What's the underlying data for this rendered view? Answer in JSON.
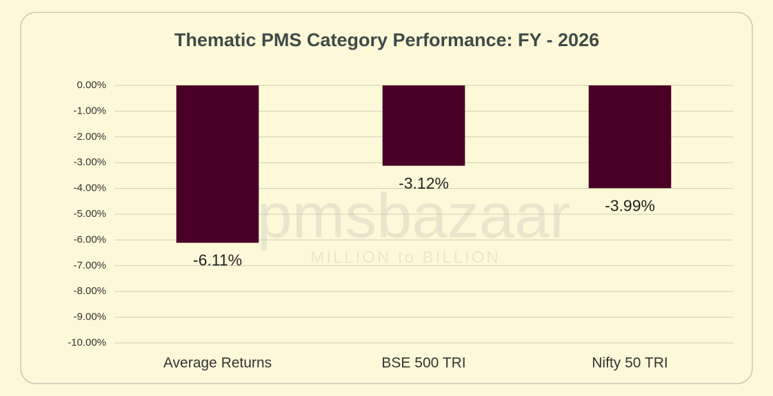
{
  "chart_data": {
    "type": "bar",
    "title": "Thematic PMS Category Performance: FY - 2026",
    "categories": [
      "Average Returns",
      "BSE 500 TRI",
      "Nifty 50 TRI"
    ],
    "values": [
      -6.11,
      -3.12,
      -3.99
    ],
    "value_labels": [
      "-6.11%",
      "-3.12%",
      "-3.99%"
    ],
    "color": "#4a0026",
    "ylim": [
      -10,
      0
    ],
    "yticks": [
      {
        "value": 0,
        "label": "0.00%"
      },
      {
        "value": -1,
        "label": "-1.00%"
      },
      {
        "value": -2,
        "label": "-2.00%"
      },
      {
        "value": -3,
        "label": "-3.00%"
      },
      {
        "value": -4,
        "label": "-4.00%"
      },
      {
        "value": -5,
        "label": "-5.00%"
      },
      {
        "value": -6,
        "label": "-6.00%"
      },
      {
        "value": -7,
        "label": "-7.00%"
      },
      {
        "value": -8,
        "label": "-8.00%"
      },
      {
        "value": -9,
        "label": "-9.00%"
      },
      {
        "value": -10,
        "label": "-10.00%"
      }
    ],
    "grid": true
  },
  "watermark": {
    "brand": "pmsbazaar",
    "tagline": "MILLION to BILLION"
  }
}
